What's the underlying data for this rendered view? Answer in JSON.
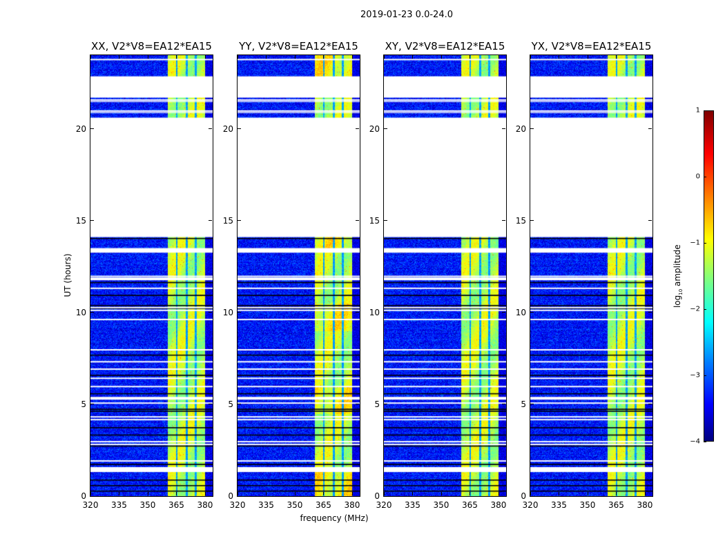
{
  "chart_data": {
    "type": "heatmap",
    "title": "2019-01-23 0.0-24.0",
    "xlabel": "frequency (MHz)",
    "ylabel": "UT (hours)",
    "xlim": [
      320,
      384
    ],
    "ylim": [
      0,
      24
    ],
    "xticks": [
      "320",
      "335",
      "350",
      "365",
      "380"
    ],
    "yticks": [
      "0",
      "5",
      "10",
      "15",
      "20"
    ],
    "panels": [
      {
        "title": "XX, V2*V8=EA12*EA15"
      },
      {
        "title": "YY, V2*V8=EA12*EA15"
      },
      {
        "title": "XY, V2*V8=EA12*EA15"
      },
      {
        "title": "YX, V2*V8=EA12*EA15"
      }
    ],
    "colorbar": {
      "label_prefix": "log",
      "label_sub": "10",
      "label_suffix": " amplitude",
      "range": [
        -4,
        1
      ],
      "ticks": [
        "1",
        "0",
        "−1",
        "−2",
        "−3",
        "−4"
      ],
      "colormap": "jet"
    },
    "background_level": -3.3,
    "rfi_band_mhz": [
      360.4,
      380.0
    ],
    "rfi_band_level": -1.2,
    "rfi_dark_channels_mhz": [
      365.1,
      370.2,
      374.9
    ],
    "flagged_intervals_hours": [
      [
        21.69,
        22.85
      ],
      [
        14.1,
        20.6
      ],
      [
        13.25,
        13.5
      ],
      [
        11.75,
        11.9
      ],
      [
        5.25,
        5.4
      ],
      [
        1.31,
        1.58
      ],
      [
        21.45,
        21.5
      ],
      [
        20.85,
        20.9
      ]
    ],
    "flagged_lines_hours": [
      23.8,
      21.6,
      12.0,
      11.35,
      10.3,
      10.15,
      9.65,
      8.0,
      7.35,
      6.95,
      6.45,
      6.0,
      5.1,
      4.35,
      4.2,
      3.0,
      2.85,
      1.95,
      21.0
    ],
    "zero_rows_hours": [
      20.55,
      14.05,
      13.35,
      11.65,
      10.95,
      10.4,
      10.25,
      7.7,
      6.6,
      5.6,
      4.75,
      4.65,
      3.75,
      3.35,
      2.75,
      1.75,
      0.9,
      0.6,
      0.3
    ]
  }
}
